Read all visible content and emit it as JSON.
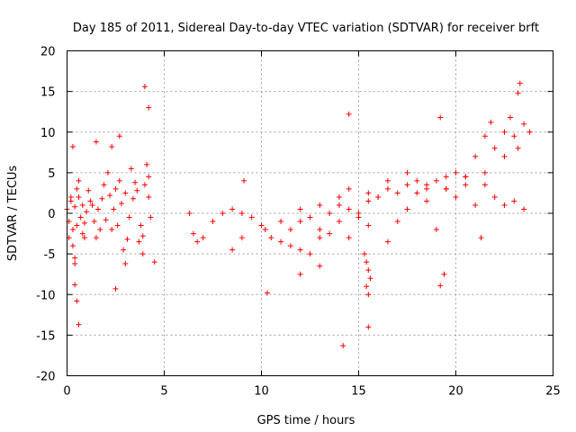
{
  "chart_data": {
    "type": "scatter",
    "title": "Day 185 of 2011, Sidereal Day-to-day VTEC variation (SDTVAR) for receiver brft",
    "xlabel": "GPS time / hours",
    "ylabel": "SDTVAR / TECUs",
    "xlim": [
      0,
      25
    ],
    "ylim": [
      -20,
      20
    ],
    "xticks": [
      0,
      5,
      10,
      15,
      20,
      25
    ],
    "yticks": [
      -20,
      -15,
      -10,
      -5,
      0,
      5,
      10,
      15,
      20
    ],
    "xtick_labels": [
      "0",
      "5",
      "10",
      "15",
      "20",
      "25"
    ],
    "ytick_labels": [
      "-20",
      "-15",
      "-10",
      "-5",
      "0",
      "5",
      "10",
      "15",
      "20"
    ],
    "grid": true,
    "marker": "plus",
    "series": [
      {
        "name": "SDTVAR",
        "color": "#ff0000",
        "x": [
          0.0,
          0.1,
          0.2,
          0.3,
          0.4,
          0.5,
          0.6,
          0.7,
          0.8,
          0.9,
          1.0,
          1.2,
          1.4,
          1.6,
          1.8,
          2.0,
          2.2,
          2.4,
          2.6,
          2.8,
          3.0,
          3.2,
          3.4,
          3.6,
          3.8,
          4.0,
          4.2,
          4.3,
          0.1,
          0.3,
          0.5,
          0.8,
          1.1,
          1.5,
          1.9,
          2.3,
          2.7,
          3.1,
          3.5,
          3.9,
          4.2,
          0.2,
          0.4,
          0.6,
          0.9,
          1.3,
          1.7,
          2.1,
          2.5,
          2.9,
          3.3,
          3.7,
          4.1,
          0.3,
          0.4,
          0.5,
          0.6,
          1.5,
          2.5,
          2.7,
          4.0,
          4.2,
          4.5,
          0.4,
          2.3,
          3.0,
          3.9,
          6.3,
          6.5,
          6.7,
          7.0,
          7.5,
          8.0,
          8.5,
          9.0,
          9.5,
          10.0,
          10.5,
          11.0,
          11.5,
          12.0,
          12.5,
          13.0,
          13.5,
          14.0,
          14.5,
          15.0,
          15.5,
          16.0,
          16.5,
          17.0,
          17.5,
          18.0,
          18.5,
          19.0,
          19.5,
          20.0,
          20.5,
          21.0,
          21.5,
          22.0,
          22.5,
          23.0,
          23.5,
          23.8,
          8.5,
          9.0,
          10.2,
          11.0,
          12.0,
          13.0,
          14.0,
          14.5,
          15.5,
          16.5,
          17.5,
          18.5,
          19.5,
          20.5,
          21.5,
          22.5,
          23.2,
          11.5,
          12.0,
          12.5,
          13.0,
          13.5,
          14.0,
          14.5,
          15.0,
          15.5,
          16.0,
          16.5,
          17.0,
          17.5,
          18.0,
          18.5,
          19.0,
          19.5,
          20.0,
          20.5,
          21.0,
          21.5,
          22.0,
          22.5,
          23.0,
          23.5,
          15.3,
          15.4,
          15.5,
          15.6,
          15.4,
          15.5,
          9.1,
          10.3,
          14.2,
          15.5,
          14.5,
          19.4,
          19.2,
          19.2,
          21.3,
          23.3,
          23.2,
          22.8,
          21.8,
          12.0,
          13.0
        ],
        "y": [
          0.5,
          -1,
          1.5,
          -2,
          0.8,
          -1.5,
          2,
          -0.5,
          1,
          -1.2,
          0.2,
          1.5,
          -1,
          0.5,
          1.8,
          -0.8,
          2.2,
          0.5,
          -1.5,
          1.2,
          2.5,
          -0.5,
          1.8,
          2.8,
          -1.5,
          3.5,
          2,
          -0.5,
          -3,
          -4,
          3,
          -2.5,
          2.8,
          -3,
          3.5,
          -2,
          4,
          -3.2,
          3.8,
          -2.8,
          4.5,
          2,
          -5.5,
          4,
          -3,
          1,
          -2,
          5,
          3,
          -4.5,
          5.5,
          -3.5,
          6,
          8.2,
          -8.8,
          -10.8,
          -13.7,
          8.8,
          -9.3,
          9.5,
          15.6,
          13,
          -6,
          -6.2,
          8.2,
          -6.2,
          -5,
          0,
          -2.5,
          -3.5,
          -3,
          -1,
          0,
          0.5,
          0,
          -0.5,
          -1.5,
          -3,
          -3.5,
          -2,
          -1,
          -0.5,
          -2,
          0,
          1,
          0.5,
          -0.5,
          1.5,
          2,
          3,
          2.5,
          3.5,
          4,
          3,
          4,
          4.5,
          5,
          4.5,
          7,
          9.5,
          8,
          10,
          9.5,
          11,
          10,
          -4.5,
          -3,
          -2,
          -1,
          0.5,
          1,
          2,
          3,
          2.5,
          4,
          5,
          3.5,
          3,
          4.5,
          5,
          7,
          8,
          -4,
          -4.5,
          -5,
          -3,
          -2.5,
          -1,
          -3,
          0,
          -1.5,
          2,
          -3.5,
          -1,
          0.5,
          2.5,
          1.5,
          -2,
          3,
          2,
          3.5,
          1,
          3.5,
          2,
          1,
          1.5,
          0.5,
          -5,
          -6,
          -7,
          -8,
          -9,
          -10,
          4,
          -9.8,
          -16.3,
          -14,
          12.2,
          -7.5,
          -8.9,
          11.8,
          -3,
          16,
          14.8,
          11.8,
          11.2,
          -7.5,
          -6.5
        ]
      }
    ]
  }
}
